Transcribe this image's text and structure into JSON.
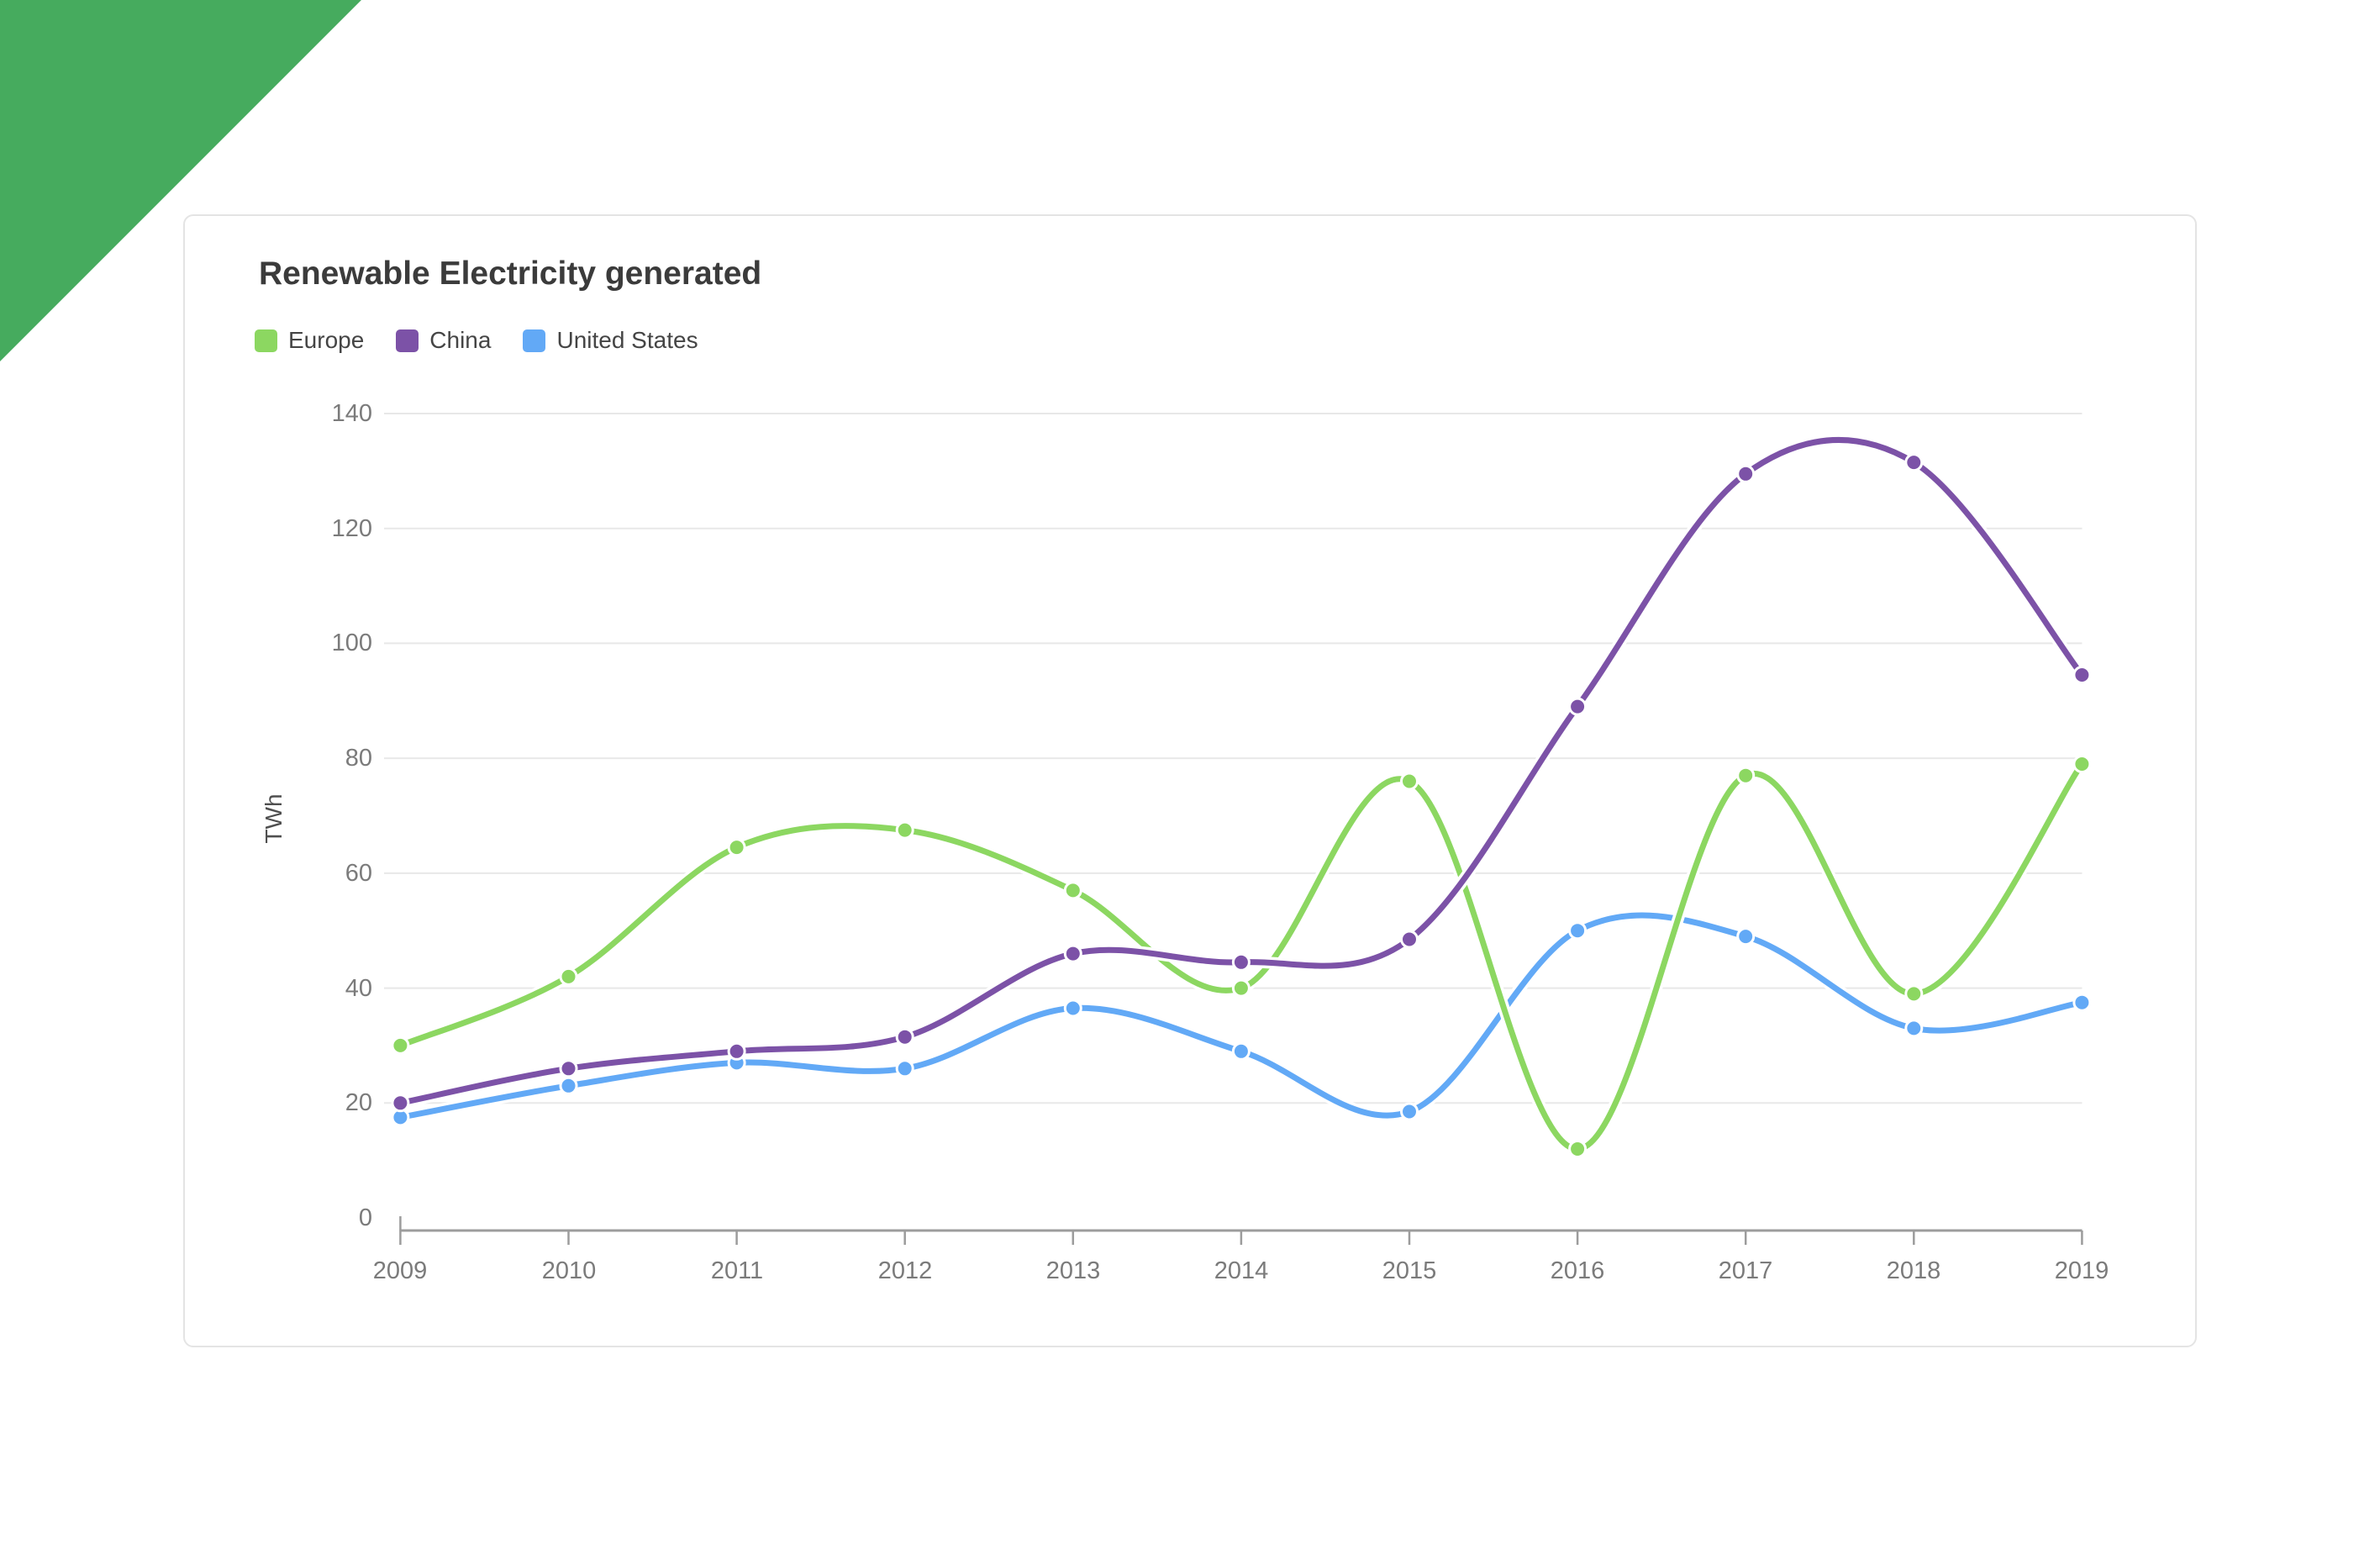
{
  "page": {
    "background": "#FFFFFF",
    "corner_triangle_color": "#46AB5E"
  },
  "card": {
    "background": "#FFFFFF",
    "border_color": "#E4E4E4"
  },
  "axis": {
    "line_color": "#9C9C9C",
    "gridline_color": "#E8E8E8",
    "tick_label_color": "#7B7B7B"
  },
  "chart_data": {
    "type": "line",
    "title": "Renewable Electricity generated",
    "ylabel": "TWh",
    "xlabel": "",
    "curve": "smooth-spline",
    "point_markers": true,
    "grid": "horizontal",
    "legend_position": "top-left",
    "ylim": [
      0,
      140
    ],
    "ytick_step": 20,
    "categories": [
      2009,
      2010,
      2011,
      2012,
      2013,
      2014,
      2015,
      2016,
      2017,
      2018,
      2019
    ],
    "xtick_labels": [
      "2009",
      "2010",
      "2011",
      "2012",
      "2013",
      "2014",
      "2015",
      "2016",
      "2017",
      "2018",
      "2019"
    ],
    "ytick_labels": [
      "140",
      "120",
      "100",
      "80",
      "60",
      "40",
      "20",
      "0"
    ],
    "series": [
      {
        "name": "Europe",
        "color": "#8CD761",
        "values": [
          30,
          42,
          64.5,
          67.5,
          57,
          40,
          76,
          12,
          77,
          39,
          79
        ]
      },
      {
        "name": "China",
        "color": "#7C52A7",
        "values": [
          20,
          26,
          29,
          31.5,
          46,
          44.5,
          48.5,
          89,
          129.5,
          131.5,
          94.5
        ]
      },
      {
        "name": "United States",
        "color": "#62A9F6",
        "values": [
          17.5,
          23,
          27,
          26,
          36.5,
          29,
          18.5,
          50,
          49,
          33,
          37.5
        ]
      }
    ]
  }
}
